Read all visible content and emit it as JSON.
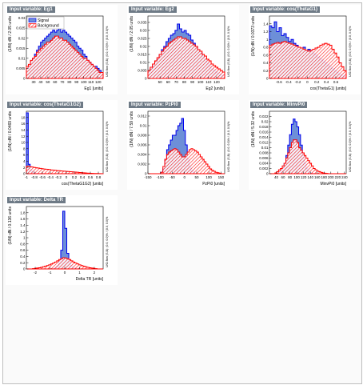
{
  "colors": {
    "signal": "#0000ee",
    "signal_fill": "#6d8fd8",
    "background": "#ff0000",
    "background_hatch": "#ff0000",
    "title_bg": "#6e7a86"
  },
  "chart_data": [
    {
      "type": "histogram",
      "title": "Input variable: Eg1",
      "xlabel": "Eg1  [units]",
      "ylabel": "(1/N) dN / 2.05 units",
      "xlim": [
        20,
        127
      ],
      "ylim": [
        0,
        0.031
      ],
      "xticks": [
        "30",
        "40",
        "50",
        "60",
        "70",
        "80",
        "90",
        "100",
        "110",
        "120"
      ],
      "yticks": [
        "0",
        "0.005",
        "0.01",
        "0.015",
        "0.02",
        "0.025",
        "0.03"
      ],
      "legend": [
        "Signal",
        "Background"
      ],
      "side_text": "U/O-flow (S,B): (0.0, 0.0)% / (0.0, 0.0)%",
      "signal": [
        0.005,
        0.006,
        0.008,
        0.01,
        0.012,
        0.014,
        0.016,
        0.018,
        0.019,
        0.02,
        0.021,
        0.022,
        0.023,
        0.024,
        0.023,
        0.024,
        0.025,
        0.023,
        0.024,
        0.023,
        0.022,
        0.021,
        0.02,
        0.019,
        0.018,
        0.016,
        0.015,
        0.014,
        0.012,
        0.011,
        0.009,
        0.008,
        0.007,
        0.006,
        0.006,
        0.005,
        0.004,
        0.003
      ],
      "background": [
        0.006,
        0.007,
        0.009,
        0.01,
        0.011,
        0.013,
        0.014,
        0.015,
        0.016,
        0.017,
        0.018,
        0.018,
        0.019,
        0.02,
        0.021,
        0.021,
        0.02,
        0.02,
        0.019,
        0.019,
        0.018,
        0.017,
        0.016,
        0.015,
        0.014,
        0.013,
        0.012,
        0.011,
        0.01,
        0.01,
        0.009,
        0.008,
        0.007,
        0.006,
        0.005,
        0.004,
        0.003,
        0.003
      ]
    },
    {
      "type": "histogram",
      "title": "Input variable: Eg2",
      "xlabel": "Eg2  [units]",
      "ylabel": "(1/N) dN / 2.05 units",
      "xlim": [
        35,
        130
      ],
      "ylim": [
        0,
        0.039
      ],
      "xticks": [
        "50",
        "60",
        "70",
        "80",
        "90",
        "100",
        "110",
        "120"
      ],
      "yticks": [
        "0",
        "0.005",
        "0.01",
        "0.015",
        "0.02",
        "0.025",
        "0.03",
        "0.035"
      ],
      "side_text": "U/O-flow (S,B): (0.0, 0.0)% / (0.0, 0.0)%",
      "signal": [
        0.004,
        0.006,
        0.008,
        0.01,
        0.012,
        0.015,
        0.018,
        0.02,
        0.023,
        0.025,
        0.027,
        0.028,
        0.03,
        0.034,
        0.031,
        0.029,
        0.03,
        0.028,
        0.027,
        0.024,
        0.022,
        0.02,
        0.018,
        0.016,
        0.014,
        0.012,
        0.01,
        0.008,
        0.006,
        0.005,
        0.004,
        0.003,
        0.002,
        0.002
      ],
      "background": [
        0.005,
        0.007,
        0.009,
        0.011,
        0.013,
        0.015,
        0.017,
        0.019,
        0.02,
        0.022,
        0.023,
        0.024,
        0.025,
        0.026,
        0.026,
        0.025,
        0.025,
        0.024,
        0.023,
        0.022,
        0.021,
        0.02,
        0.018,
        0.017,
        0.015,
        0.014,
        0.012,
        0.011,
        0.009,
        0.008,
        0.007,
        0.006,
        0.005,
        0.004
      ]
    },
    {
      "type": "histogram",
      "title": "Input variable: cos(ThetaG1)",
      "xlabel": "cos(ThetaG1)  [units]",
      "ylabel": "(1/N) dN / 0.0373 units",
      "xlim": [
        -0.8,
        0.82
      ],
      "ylim": [
        0,
        1.6
      ],
      "xticks": [
        "-0.6",
        "-0.4",
        "-0.2",
        "0",
        "0.2",
        "0.4",
        "0.6"
      ],
      "yticks": [
        "0",
        "0.2",
        "0.4",
        "0.6",
        "0.8",
        "1",
        "1.2",
        "1.4"
      ],
      "side_text": "U/O-flow (S,B): (0.0, 0.0)% / (0.0, 0.0)%",
      "signal": [
        1.35,
        1.3,
        1.45,
        1.2,
        1.3,
        1.1,
        1.15,
        1.05,
        0.95,
        1.0,
        0.9,
        0.85,
        0.8,
        0.75,
        0.8,
        0.7,
        0.75,
        0.7,
        0.65,
        0.6,
        0.55,
        0.5,
        0.45,
        0.4,
        0.35,
        0.3,
        0.25,
        0.2,
        0.15,
        0.1,
        0.08,
        0.05
      ],
      "background": [
        0.85,
        0.88,
        0.9,
        0.92,
        0.9,
        0.93,
        0.95,
        0.92,
        0.9,
        0.88,
        0.85,
        0.82,
        0.8,
        0.78,
        0.75,
        0.72,
        0.7,
        0.72,
        0.75,
        0.78,
        0.8,
        0.85,
        0.88,
        0.9,
        0.88,
        0.85,
        0.75,
        0.65,
        0.55,
        0.4,
        0.3,
        0.2
      ]
    },
    {
      "type": "histogram",
      "title": "Input variable: cos(ThetaG1G2)",
      "xlabel": "cos(ThetaG1G2)  [units]",
      "ylabel": "(1/N) dN / 0.0469 units",
      "xlim": [
        -1.0,
        0.92
      ],
      "ylim": [
        0,
        20
      ],
      "xticks": [
        "-1",
        "-0.8",
        "-0.6",
        "-0.4",
        "-0.2",
        "0",
        "0.2",
        "0.4",
        "0.6",
        "0.8"
      ],
      "yticks": [
        "0",
        "2",
        "4",
        "6",
        "8",
        "10",
        "12",
        "14",
        "16",
        "18"
      ],
      "side_text": "U/O-flow (S,B): (0.0, 0.0)% / (0.0, 0.0)%",
      "signal": [
        19.5,
        3.0,
        1.2,
        0.6,
        0.3,
        0.15,
        0.1,
        0.05,
        0.03,
        0.02,
        0.01,
        0.01,
        0.0,
        0.0,
        0.0,
        0.0,
        0.0,
        0.0,
        0.0,
        0.0,
        0.0,
        0.0,
        0.0,
        0.0,
        0.0,
        0.0,
        0.0,
        0.0,
        0.0,
        0.0,
        0.0,
        0.0,
        0.0,
        0.0,
        0.0,
        0.0,
        0.0,
        0.0,
        0.0,
        0.0,
        0.0
      ],
      "background": [
        2.4,
        2.3,
        2.2,
        2.1,
        2.0,
        1.9,
        1.8,
        1.7,
        1.6,
        1.5,
        1.45,
        1.4,
        1.3,
        1.2,
        1.15,
        1.1,
        1.0,
        0.95,
        0.9,
        0.85,
        0.8,
        0.75,
        0.7,
        0.65,
        0.6,
        0.55,
        0.5,
        0.45,
        0.4,
        0.35,
        0.3,
        0.25,
        0.2,
        0.15,
        0.12,
        0.1,
        0.07,
        0.05,
        0.03,
        0.02,
        0.01
      ]
    },
    {
      "type": "histogram",
      "title": "Input variable: PzPi0",
      "xlabel": "PzPi0  [units]",
      "ylabel": "(1/N) dN / 7.59 units",
      "xlim": [
        -150,
        165
      ],
      "ylim": [
        0,
        0.013
      ],
      "xticks": [
        "-150",
        "-100",
        "-50",
        "0",
        "50",
        "100",
        "150"
      ],
      "yticks": [
        "0",
        "0.002",
        "0.004",
        "0.006",
        "0.008",
        "0.01",
        "0.012"
      ],
      "side_text": "U/O-flow (S,B): (0.0, 0.0)% / (0.0, 0.0)%",
      "signal": [
        0.0,
        0.0,
        0.0,
        0.0,
        0.0,
        0.0,
        0.0,
        0.0003,
        0.001,
        0.003,
        0.005,
        0.006,
        0.007,
        0.008,
        0.008,
        0.009,
        0.01,
        0.0105,
        0.0115,
        0.009,
        0.006,
        0.003,
        0.0015,
        0.0007,
        0.0003,
        0.0,
        0.0,
        0.0,
        0.0,
        0.0,
        0.0,
        0.0,
        0.0,
        0.0,
        0.0,
        0.0,
        0.0,
        0.0,
        0.0,
        0.0,
        0.0
      ],
      "background": [
        0.0,
        0.0,
        0.0,
        0.0,
        0.0,
        0.0,
        0.0,
        0.0003,
        0.0015,
        0.003,
        0.004,
        0.0045,
        0.0048,
        0.005,
        0.0052,
        0.005,
        0.0045,
        0.004,
        0.0035,
        0.0035,
        0.004,
        0.0045,
        0.005,
        0.0052,
        0.005,
        0.0048,
        0.0045,
        0.004,
        0.0035,
        0.003,
        0.0025,
        0.002,
        0.0015,
        0.001,
        0.0007,
        0.0005,
        0.0003,
        0.0002,
        0.0001,
        0.0,
        0.0
      ]
    },
    {
      "type": "histogram",
      "title": "Input variable: MinvPi0",
      "xlabel": "MinvPi0  [units]",
      "ylabel": "(1/N) dN / 5.32 units",
      "xlim": [
        20,
        245
      ],
      "ylim": [
        0,
        0.024
      ],
      "xticks": [
        "40",
        "60",
        "80",
        "100",
        "120",
        "140",
        "160",
        "180",
        "200",
        "220",
        "240"
      ],
      "yticks": [
        "0",
        "0.002",
        "0.004",
        "0.006",
        "0.008",
        "0.01",
        "0.012",
        "0.014",
        "0.016",
        "0.018",
        "0.02",
        "0.022"
      ],
      "side_text": "U/O-flow (S,B): (0.0, 0.0)% / (0.0, 0.0)%",
      "signal": [
        0.0,
        0.0,
        0.0,
        0.0,
        0.0002,
        0.0005,
        0.001,
        0.002,
        0.004,
        0.007,
        0.011,
        0.015,
        0.019,
        0.021,
        0.02,
        0.018,
        0.015,
        0.011,
        0.007,
        0.004,
        0.002,
        0.001,
        0.0005,
        0.0002,
        0.0001,
        0.0,
        0.0,
        0.0,
        0.0,
        0.0,
        0.0,
        0.0,
        0.0,
        0.0,
        0.0,
        0.0,
        0.0,
        0.0,
        0.0,
        0.0,
        0.0,
        0.0
      ],
      "background": [
        0.0,
        0.0,
        0.0,
        0.0003,
        0.0008,
        0.0015,
        0.002,
        0.003,
        0.004,
        0.006,
        0.008,
        0.01,
        0.012,
        0.013,
        0.013,
        0.012,
        0.01,
        0.009,
        0.008,
        0.007,
        0.006,
        0.005,
        0.004,
        0.003,
        0.002,
        0.0015,
        0.001,
        0.0008,
        0.0005,
        0.0003,
        0.0002,
        0.0001,
        0.0,
        0.0,
        0.0,
        0.0,
        0.0,
        0.0,
        0.0,
        0.0,
        0.0,
        0.0
      ]
    },
    {
      "type": "histogram",
      "title": "Input variable: Delta TR",
      "xlabel": "Delta TR  [units]",
      "ylabel": "(1/N) dN / 0.136 units",
      "xlim": [
        -2.6,
        2.6
      ],
      "ylim": [
        0,
        2.0
      ],
      "xticks": [
        "-2",
        "-1",
        "0",
        "1",
        "2"
      ],
      "yticks": [
        "0",
        "0.2",
        "0.4",
        "0.6",
        "0.8",
        "1",
        "1.2",
        "1.4",
        "1.6",
        "1.8"
      ],
      "side_text": "U/O-flow (S,B): (0.0, 0.0)% / (0.0, 0.0)%",
      "signal": [
        0.0,
        0.0,
        0.0,
        0.0,
        0.0,
        0.0,
        0.0,
        0.0,
        0.0,
        0.0,
        0.0,
        0.0,
        0.01,
        0.02,
        0.05,
        0.1,
        0.25,
        0.6,
        1.85,
        1.3,
        0.5,
        0.2,
        0.1,
        0.05,
        0.02,
        0.01,
        0.0,
        0.0,
        0.0,
        0.0,
        0.0,
        0.0,
        0.0,
        0.0,
        0.0,
        0.0,
        0.0,
        0.0
      ],
      "background": [
        0.0,
        0.0,
        0.0,
        0.01,
        0.02,
        0.03,
        0.04,
        0.05,
        0.07,
        0.09,
        0.11,
        0.13,
        0.16,
        0.19,
        0.22,
        0.26,
        0.3,
        0.33,
        0.36,
        0.35,
        0.33,
        0.3,
        0.26,
        0.22,
        0.19,
        0.16,
        0.13,
        0.11,
        0.09,
        0.07,
        0.05,
        0.04,
        0.03,
        0.02,
        0.01,
        0.0,
        0.0,
        0.0
      ]
    }
  ]
}
